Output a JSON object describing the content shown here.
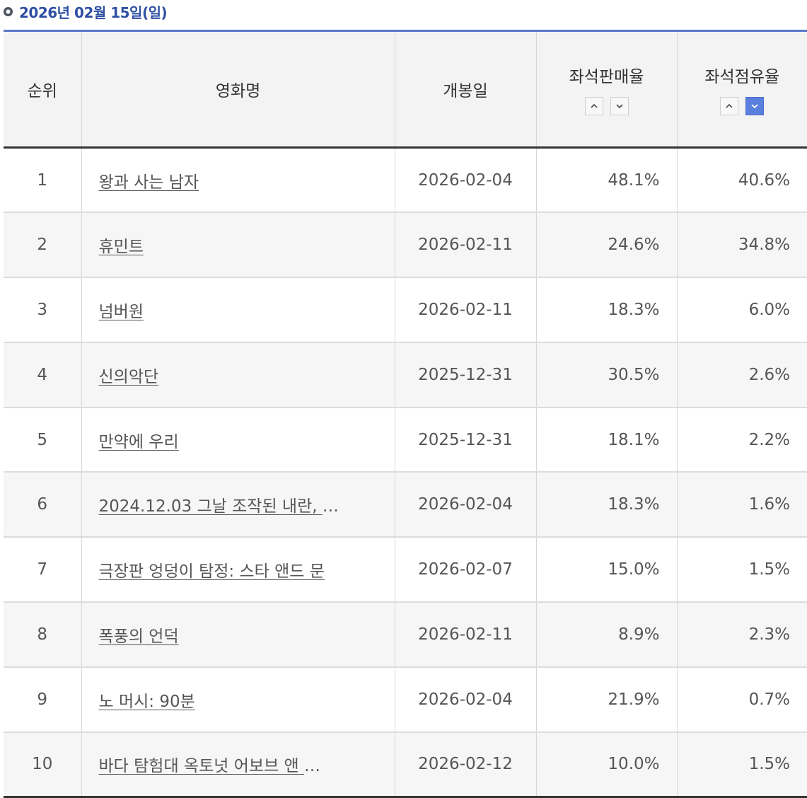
{
  "header": {
    "date": "2026년 02월 15일(일)"
  },
  "columns": {
    "rank": "순위",
    "title": "영화명",
    "open_date": "개봉일",
    "sales_rate": "좌석판매율",
    "share_rate": "좌석점유율"
  },
  "sort": {
    "sales_rate": {
      "active": "none"
    },
    "share_rate": {
      "active": "desc"
    }
  },
  "colors": {
    "accent": "#2f4fa3",
    "active_sort": "#5b7fde",
    "header_rule": "#5b78c9"
  },
  "rows": [
    {
      "rank": "1",
      "title": "왕과 사는 남자",
      "ellipsis": "",
      "open_date": "2026-02-04",
      "sales_rate": "48.1%",
      "share_rate": "40.6%"
    },
    {
      "rank": "2",
      "title": "휴민트",
      "ellipsis": "",
      "open_date": "2026-02-11",
      "sales_rate": "24.6%",
      "share_rate": "34.8%"
    },
    {
      "rank": "3",
      "title": "넘버원",
      "ellipsis": "",
      "open_date": "2026-02-11",
      "sales_rate": "18.3%",
      "share_rate": "6.0%"
    },
    {
      "rank": "4",
      "title": "신의악단",
      "ellipsis": "",
      "open_date": "2025-12-31",
      "sales_rate": "30.5%",
      "share_rate": "2.6%"
    },
    {
      "rank": "5",
      "title": "만약에 우리",
      "ellipsis": "",
      "open_date": "2025-12-31",
      "sales_rate": "18.1%",
      "share_rate": "2.2%"
    },
    {
      "rank": "6",
      "title": "2024.12.03 그날 조작된 내란, ",
      "ellipsis": "…",
      "open_date": "2026-02-04",
      "sales_rate": "18.3%",
      "share_rate": "1.6%"
    },
    {
      "rank": "7",
      "title": "극장판 엉덩이 탐정: 스타 앤드 문",
      "ellipsis": "",
      "open_date": "2026-02-07",
      "sales_rate": "15.0%",
      "share_rate": "1.5%"
    },
    {
      "rank": "8",
      "title": "폭풍의 언덕",
      "ellipsis": "",
      "open_date": "2026-02-11",
      "sales_rate": "8.9%",
      "share_rate": "2.3%"
    },
    {
      "rank": "9",
      "title": "노 머시: 90분",
      "ellipsis": "",
      "open_date": "2026-02-04",
      "sales_rate": "21.9%",
      "share_rate": "0.7%"
    },
    {
      "rank": "10",
      "title": "바다 탐험대 옥토넛 어보브 앤 ",
      "ellipsis": "…",
      "open_date": "2026-02-12",
      "sales_rate": "10.0%",
      "share_rate": "1.5%"
    }
  ]
}
